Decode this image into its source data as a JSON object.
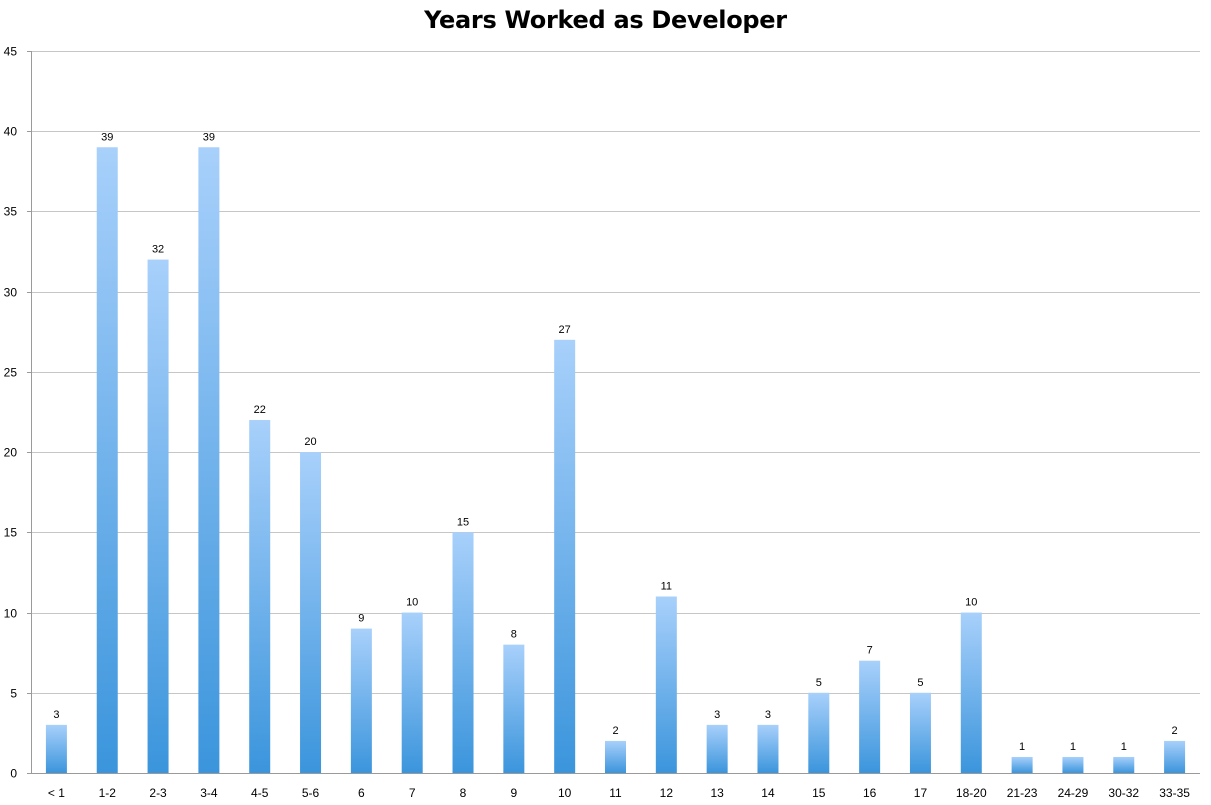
{
  "chart_data": {
    "type": "bar",
    "title": "Years Worked as Developer",
    "xlabel": "",
    "ylabel": "",
    "ylim": [
      0,
      45
    ],
    "yticks": [
      0,
      5,
      10,
      15,
      20,
      25,
      30,
      35,
      40,
      45
    ],
    "grid": true,
    "legend": "none",
    "categories": [
      "< 1",
      "1-2",
      "2-3",
      "3-4",
      "4-5",
      "5-6",
      "6",
      "7",
      "8",
      "9",
      "10",
      "11",
      "12",
      "13",
      "14",
      "15",
      "16",
      "17",
      "18-20",
      "21-23",
      "24-29",
      "30-32",
      "33-35"
    ],
    "values": [
      3,
      39,
      32,
      39,
      22,
      20,
      9,
      10,
      15,
      8,
      27,
      2,
      11,
      3,
      3,
      5,
      7,
      5,
      10,
      1,
      1,
      1,
      2
    ],
    "data_labels": true,
    "colors": {
      "bar_top": "#a8d0fb",
      "bar_bottom": "#3b95dc",
      "grid": "#c6c6c6",
      "axis": "#9a9a9a"
    }
  }
}
